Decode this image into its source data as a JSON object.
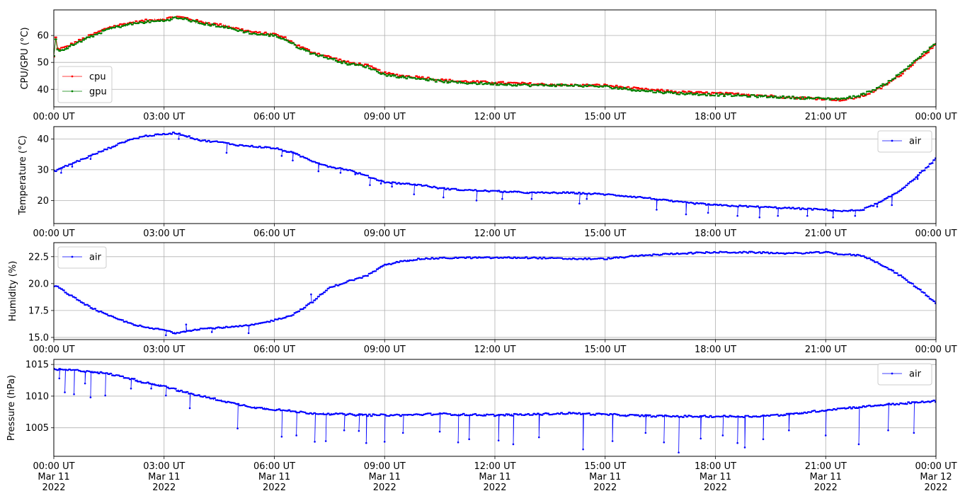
{
  "chart_data": [
    {
      "type": "line",
      "ylabel": "CPU/GPU (°C)",
      "xlim_hours": [
        0,
        24
      ],
      "ylim": [
        33.5,
        69.5
      ],
      "yticks": [
        40,
        50,
        60
      ],
      "ytick_labels": [
        "40",
        "50",
        "60"
      ],
      "xtick_labels": [
        "00:00 UT",
        "03:00 UT",
        "06:00 UT",
        "09:00 UT",
        "12:00 UT",
        "15:00 UT",
        "18:00 UT",
        "21:00 UT",
        "00:00 UT"
      ],
      "grid": true,
      "legend_position": "lower-left",
      "series": [
        {
          "name": "cpu",
          "color": "#ff0000",
          "x_hours": [
            0,
            0.05,
            0.1,
            0.3,
            0.6,
            1,
            1.5,
            2,
            2.5,
            3,
            3.3,
            3.6,
            4,
            4.5,
            5,
            5.5,
            6,
            6.3,
            6.6,
            7,
            7.5,
            8,
            8.5,
            9,
            9.5,
            10,
            10.5,
            11,
            12,
            13,
            14,
            15,
            16,
            17,
            18,
            19,
            20,
            21,
            21.5,
            22,
            22.5,
            23,
            23.5,
            24
          ],
          "values": [
            52,
            59.5,
            55,
            55.5,
            57.5,
            60,
            63,
            64.5,
            65.5,
            66,
            67,
            66.5,
            65,
            64,
            62.5,
            61,
            60.5,
            59,
            56.5,
            54,
            52,
            50,
            49,
            46,
            45,
            44.5,
            43.5,
            43,
            42.5,
            42,
            41.5,
            41.5,
            40,
            39,
            38.5,
            38,
            37,
            36.5,
            36,
            37.5,
            40.5,
            45,
            51,
            56.5
          ]
        },
        {
          "name": "gpu",
          "color": "#008000",
          "x_hours": [
            0,
            0.05,
            0.1,
            0.3,
            0.6,
            1,
            1.5,
            2,
            2.5,
            3,
            3.3,
            3.6,
            4,
            4.5,
            5,
            5.5,
            6,
            6.3,
            6.6,
            7,
            7.5,
            8,
            8.5,
            9,
            9.5,
            10,
            10.5,
            11,
            12,
            13,
            14,
            15,
            16,
            17,
            18,
            19,
            20,
            21,
            21.5,
            22,
            22.5,
            23,
            23.5,
            24
          ],
          "values": [
            52,
            58.5,
            54.5,
            55,
            57,
            59.5,
            62.5,
            64,
            65,
            65.5,
            66.5,
            66,
            64.5,
            63.5,
            62,
            60.5,
            60,
            58.5,
            56,
            53.5,
            51.5,
            49.5,
            48.5,
            45.5,
            44.5,
            44,
            43,
            42.5,
            42,
            41.5,
            41.5,
            41,
            39.5,
            38.5,
            38,
            37.5,
            37,
            36.5,
            36.5,
            38,
            41,
            45.5,
            51.5,
            57
          ]
        }
      ]
    },
    {
      "type": "line",
      "ylabel": "Temperature (°C)",
      "xlim_hours": [
        0,
        24
      ],
      "ylim": [
        12.5,
        44
      ],
      "yticks": [
        20,
        30,
        40
      ],
      "ytick_labels": [
        "20",
        "30",
        "40"
      ],
      "xtick_labels": [
        "00:00 UT",
        "03:00 UT",
        "06:00 UT",
        "09:00 UT",
        "12:00 UT",
        "15:00 UT",
        "18:00 UT",
        "21:00 UT",
        "00:00 UT"
      ],
      "grid": true,
      "legend_position": "upper-right",
      "series": [
        {
          "name": "air",
          "color": "#0000ff",
          "x_hours": [
            0,
            0.5,
            1,
            1.5,
            2,
            2.5,
            3,
            3.3,
            3.6,
            4,
            4.5,
            5,
            5.5,
            6,
            6.5,
            7,
            7.5,
            8,
            8.5,
            9,
            9.5,
            10,
            10.5,
            11,
            12,
            13,
            14,
            15,
            16,
            17,
            18,
            19,
            20,
            21,
            21.5,
            22,
            22.5,
            23,
            23.5,
            24
          ],
          "values": [
            29.5,
            32,
            34.5,
            37,
            39.5,
            41,
            41.5,
            42,
            41,
            39.5,
            39,
            38,
            37.5,
            37,
            35.5,
            33,
            31,
            30,
            28,
            26,
            25.5,
            25,
            24,
            23.5,
            23,
            22.5,
            22.5,
            22,
            21,
            19.5,
            18.5,
            18,
            17.5,
            17,
            16.5,
            17,
            19.5,
            23,
            28,
            33.5
          ],
          "dips": [
            [
              0.2,
              29
            ],
            [
              0.5,
              31
            ],
            [
              1,
              33.5
            ],
            [
              3.4,
              40
            ],
            [
              4.7,
              35.5
            ],
            [
              6.2,
              34.5
            ],
            [
              6.5,
              33
            ],
            [
              7.2,
              29.5
            ],
            [
              7.8,
              29
            ],
            [
              8.2,
              28.5
            ],
            [
              8.6,
              25
            ],
            [
              8.9,
              25.5
            ],
            [
              9.2,
              24.5
            ],
            [
              9.8,
              22
            ],
            [
              10.6,
              21
            ],
            [
              11.5,
              20
            ],
            [
              12.2,
              20.5
            ],
            [
              13,
              20.5
            ],
            [
              14.3,
              19
            ],
            [
              14.5,
              20.5
            ],
            [
              16.4,
              17
            ],
            [
              17.2,
              15.5
            ],
            [
              17.8,
              16
            ],
            [
              18.6,
              15
            ],
            [
              19.2,
              14.5
            ],
            [
              19.7,
              15
            ],
            [
              20.5,
              15
            ],
            [
              21.2,
              14.5
            ],
            [
              21.8,
              15
            ],
            [
              22.4,
              18
            ],
            [
              22.8,
              18.5
            ],
            [
              23.5,
              27
            ]
          ]
        }
      ]
    },
    {
      "type": "line",
      "ylabel": "Humidity (%)",
      "xlim_hours": [
        0,
        24
      ],
      "ylim": [
        14.8,
        23.8
      ],
      "yticks": [
        15.0,
        17.5,
        20.0,
        22.5
      ],
      "ytick_labels": [
        "15.0",
        "17.5",
        "20.0",
        "22.5"
      ],
      "xtick_labels": [
        "00:00 UT",
        "03:00 UT",
        "06:00 UT",
        "09:00 UT",
        "12:00 UT",
        "15:00 UT",
        "18:00 UT",
        "21:00 UT",
        "00:00 UT"
      ],
      "grid": true,
      "legend_position": "upper-left",
      "series": [
        {
          "name": "air",
          "color": "#0000ff",
          "x_hours": [
            0,
            0.1,
            0.5,
            1,
            1.5,
            2,
            2.5,
            3,
            3.3,
            3.6,
            4,
            4.5,
            5,
            5.5,
            6,
            6.5,
            7,
            7.5,
            8,
            8.5,
            9,
            9.5,
            10,
            11,
            12,
            13,
            14,
            15,
            16,
            17,
            18,
            19,
            20,
            21,
            21.5,
            22,
            22.5,
            23,
            23.5,
            24
          ],
          "values": [
            19.8,
            19.7,
            18.8,
            17.8,
            17,
            16.4,
            15.9,
            15.7,
            15.4,
            15.6,
            15.8,
            15.9,
            16,
            16.2,
            16.6,
            17.1,
            18.2,
            19.6,
            20.2,
            20.7,
            21.7,
            22.1,
            22.3,
            22.4,
            22.4,
            22.4,
            22.3,
            22.3,
            22.6,
            22.8,
            22.9,
            22.9,
            22.8,
            22.9,
            22.7,
            22.6,
            21.8,
            20.8,
            19.6,
            18.2
          ],
          "dips": [
            [
              3.6,
              16.2
            ],
            [
              4.3,
              15.5
            ],
            [
              5.3,
              15.4
            ],
            [
              3.05,
              15.2
            ],
            [
              7.0,
              19.0
            ]
          ]
        }
      ]
    },
    {
      "type": "line",
      "ylabel": "Pressure (hPa)",
      "xlim_hours": [
        0,
        24
      ],
      "ylim": [
        1000.5,
        1015.8
      ],
      "yticks": [
        1005,
        1010,
        1015
      ],
      "ytick_labels": [
        "1005",
        "1010",
        "1015"
      ],
      "xtick_labels": [
        "00:00 UT\nMar 11\n2022",
        "03:00 UT\nMar 11\n2022",
        "06:00 UT\nMar 11\n2022",
        "09:00 UT\nMar 11\n2022",
        "12:00 UT\nMar 11\n2022",
        "15:00 UT\nMar 11\n2022",
        "18:00 UT\nMar 11\n2022",
        "21:00 UT\nMar 11\n2022",
        "00:00 UT\nMar 12\n2022"
      ],
      "grid": true,
      "legend_position": "upper-right",
      "series": [
        {
          "name": "air",
          "color": "#0000ff",
          "x_hours": [
            0,
            0.5,
            1,
            1.5,
            2,
            2.5,
            3,
            3.5,
            4,
            4.5,
            5,
            5.5,
            6,
            6.5,
            7,
            7.5,
            8,
            8.5,
            9,
            9.5,
            10,
            10.5,
            11,
            12,
            13,
            14,
            15,
            16,
            17,
            18,
            19,
            20,
            21,
            21.5,
            22,
            22.5,
            23,
            23.5,
            24
          ],
          "values": [
            1014.2,
            1014.1,
            1013.9,
            1013.5,
            1012.9,
            1012.1,
            1011.6,
            1010.7,
            1010,
            1009.4,
            1008.7,
            1008.2,
            1007.9,
            1007.6,
            1007.3,
            1007.2,
            1007.1,
            1007,
            1007,
            1007,
            1007.1,
            1007.2,
            1007.1,
            1007,
            1007.1,
            1007.3,
            1007.1,
            1006.9,
            1006.8,
            1006.8,
            1006.8,
            1007.1,
            1007.8,
            1008.1,
            1008.3,
            1008.6,
            1008.8,
            1009,
            1009.2
          ],
          "dips": [
            [
              0.15,
              1012.8
            ],
            [
              0.3,
              1010.6
            ],
            [
              0.55,
              1010.3
            ],
            [
              0.85,
              1012
            ],
            [
              1.0,
              1009.8
            ],
            [
              1.4,
              1010.1
            ],
            [
              2.1,
              1011.2
            ],
            [
              2.65,
              1011.2
            ],
            [
              3.05,
              1010.1
            ],
            [
              3.7,
              1008.1
            ],
            [
              5.0,
              1004.9
            ],
            [
              6.2,
              1003.6
            ],
            [
              6.6,
              1003.8
            ],
            [
              7.1,
              1002.8
            ],
            [
              7.4,
              1002.9
            ],
            [
              7.9,
              1004.6
            ],
            [
              8.3,
              1004.5
            ],
            [
              8.5,
              1002.6
            ],
            [
              9.0,
              1002.8
            ],
            [
              9.5,
              1004.2
            ],
            [
              10.5,
              1004.4
            ],
            [
              11.0,
              1002.7
            ],
            [
              11.3,
              1003.2
            ],
            [
              12.1,
              1003.0
            ],
            [
              12.5,
              1002.4
            ],
            [
              13.2,
              1003.5
            ],
            [
              14.4,
              1001.6
            ],
            [
              15.2,
              1002.9
            ],
            [
              16.1,
              1004.2
            ],
            [
              16.6,
              1002.7
            ],
            [
              17.0,
              1001.1
            ],
            [
              17.6,
              1003.3
            ],
            [
              18.2,
              1003.8
            ],
            [
              18.6,
              1002.6
            ],
            [
              18.8,
              1001.9
            ],
            [
              19.3,
              1003.2
            ],
            [
              20.0,
              1004.6
            ],
            [
              21.0,
              1003.8
            ],
            [
              21.9,
              1002.4
            ],
            [
              22.7,
              1004.6
            ],
            [
              23.4,
              1004.2
            ]
          ]
        }
      ]
    }
  ]
}
